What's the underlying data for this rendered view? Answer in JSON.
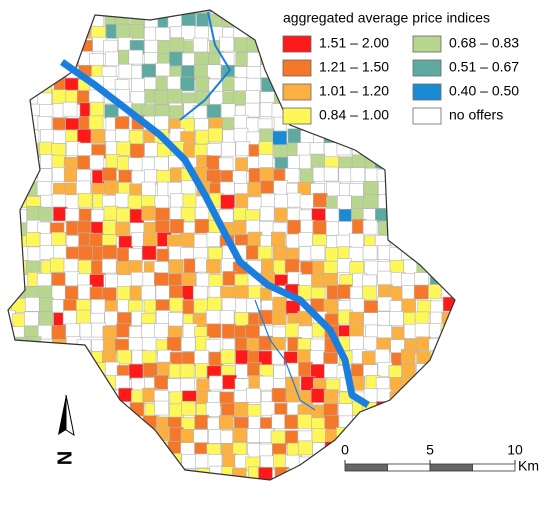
{
  "legend": {
    "title": "aggregated average price indices",
    "items": [
      {
        "label": "1.51 – 2.00",
        "color": "#ff1a1a"
      },
      {
        "label": "1.21 – 1.50",
        "color": "#f5782a"
      },
      {
        "label": "1.01 – 1.20",
        "color": "#fbb040"
      },
      {
        "label": "0.84 – 1.00",
        "color": "#fdf75a"
      },
      {
        "label": "0.68 – 0.83",
        "color": "#b9d68e"
      },
      {
        "label": "0.51 – 0.67",
        "color": "#5faaa0"
      },
      {
        "label": "0.40 – 0.50",
        "color": "#1a8ad4"
      },
      {
        "label": "no offers",
        "color": "#ffffff"
      }
    ]
  },
  "north_arrow": {
    "label": "N"
  },
  "scale_bar": {
    "ticks": [
      0,
      5,
      10
    ],
    "unit": "Km"
  }
}
